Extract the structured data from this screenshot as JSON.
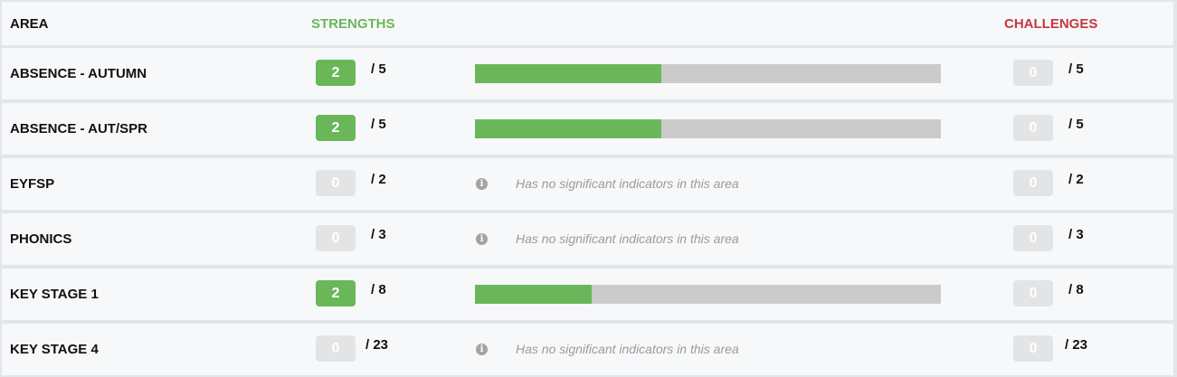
{
  "header": {
    "area": "AREA",
    "strengths": "STRENGTHS",
    "challenges": "CHALLENGES"
  },
  "colors": {
    "strength_accent": "#6ab75a",
    "challenge_accent": "#c4383e",
    "badge_empty": "#e3e4e6",
    "bar_track": "#cbcbcb"
  },
  "no_indicators_text": "Has no significant indicators in this area",
  "info_icon": "info-icon",
  "rows": [
    {
      "area": "ABSENCE - AUTUMN",
      "strengths": "2",
      "strengths_total": "/ 5",
      "challenges": "0",
      "challenges_total": "/ 5",
      "strength_fraction": 0.4
    },
    {
      "area": "ABSENCE - AUT/SPR",
      "strengths": "2",
      "strengths_total": "/ 5",
      "challenges": "0",
      "challenges_total": "/ 5",
      "strength_fraction": 0.4
    },
    {
      "area": "EYFSP",
      "strengths": "0",
      "strengths_total": "/ 2",
      "challenges": "0",
      "challenges_total": "/ 2",
      "strength_fraction": null
    },
    {
      "area": "PHONICS",
      "strengths": "0",
      "strengths_total": "/ 3",
      "challenges": "0",
      "challenges_total": "/ 3",
      "strength_fraction": null
    },
    {
      "area": "KEY STAGE 1",
      "strengths": "2",
      "strengths_total": "/ 8",
      "challenges": "0",
      "challenges_total": "/ 8",
      "strength_fraction": 0.25
    },
    {
      "area": "KEY STAGE 4",
      "strengths": "0",
      "strengths_total": "/ 23",
      "challenges": "0",
      "challenges_total": "/ 23",
      "strength_fraction": null
    }
  ]
}
